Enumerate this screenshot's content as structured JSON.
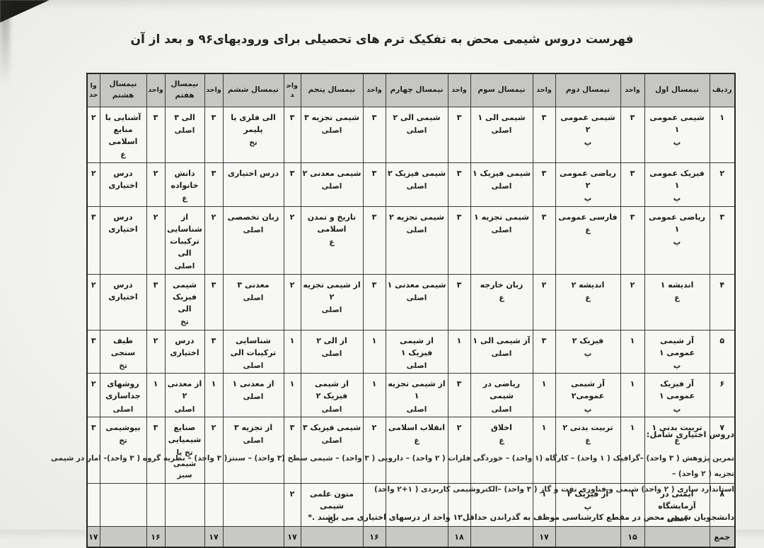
{
  "page": {
    "title": "فهرست دروس شیمی محض  به تفکیک ترم های تحصیلی برای ورودیهای۹۶ و بعد از آن"
  },
  "table": {
    "col_headers": {
      "radif": "ردیف",
      "unit": "واحد",
      "semesters": [
        "نیمسال اول",
        "نیمسال دوم",
        "نیمسال سوم",
        "نیمسال چهارم",
        "نیمسال پنجم",
        "نیمسال ششم",
        "نیمسال هفتم",
        "نیمسال هشتم"
      ]
    },
    "rows": [
      {
        "no": "۱",
        "cells": [
          {
            "c": "شیمی عمومی ۱",
            "t": "پ",
            "u": "۳"
          },
          {
            "c": "شیمی عمومی ۲",
            "t": "پ",
            "u": "۳"
          },
          {
            "c": "شیمی الی ۱",
            "t": "اصلی",
            "u": "۳"
          },
          {
            "c": "شیمی الی ۲",
            "t": "اصلی",
            "u": "۳"
          },
          {
            "c": "شیمی تجزیه ۳",
            "t": "اصلی",
            "u": "۳"
          },
          {
            "c": "الی فلزی یا\nپلیمر",
            "t": "تخ",
            "u": "۳"
          },
          {
            "c": "الی ۳",
            "t": "اصلی",
            "u": "۳"
          },
          {
            "c": "آشنایی با منابع\nاسلامی",
            "t": "ع",
            "u": "۲"
          }
        ]
      },
      {
        "no": "۲",
        "cells": [
          {
            "c": "فیزیک عمومی ۱",
            "t": "پ",
            "u": "۳"
          },
          {
            "c": "ریاضی عمومی ۲",
            "t": "پ",
            "u": "۳"
          },
          {
            "c": "شیمی فیزیک ۱",
            "t": "اصلی",
            "u": "۳"
          },
          {
            "c": "شیمی فیزیک ۲",
            "t": "اصلی",
            "u": "۳"
          },
          {
            "c": "شیمی معدنی ۲",
            "t": "اصلی",
            "u": "۳"
          },
          {
            "c": "درس اختیاری",
            "t": "",
            "u": "۳"
          },
          {
            "c": "دانش\nخانواده",
            "t": "ع",
            "u": "۲"
          },
          {
            "c": "درس اختیاری",
            "t": "",
            "u": "۲"
          }
        ]
      },
      {
        "no": "۳",
        "cells": [
          {
            "c": "ریاضی عمومی ۱",
            "t": "پ",
            "u": "۳"
          },
          {
            "c": "فارسی عمومی",
            "t": "ع",
            "u": "۳"
          },
          {
            "c": "شیمی تجزیه ۱",
            "t": "اصلی",
            "u": "۳"
          },
          {
            "c": "شیمی تجزیه ۲",
            "t": "اصلی",
            "u": "۳"
          },
          {
            "c": "تاریخ و تمدن\nاسلامی",
            "t": "ع",
            "u": "۲"
          },
          {
            "c": "زبان تخصصی",
            "t": "اصلی",
            "u": "۲"
          },
          {
            "c": "از شناسایی\nترکیبات الی",
            "t": "اصلی",
            "u": "۲"
          },
          {
            "c": "درس اختیاری",
            "t": "",
            "u": "۳"
          }
        ]
      },
      {
        "no": "۴",
        "cells": [
          {
            "c": "اندیشه ۱",
            "t": "ع",
            "u": "۲"
          },
          {
            "c": "اندیشه ۲",
            "t": "ع",
            "u": "۲"
          },
          {
            "c": "زبان خارجه",
            "t": "ع",
            "u": "۳"
          },
          {
            "c": "شیمی معدنی ۱",
            "t": "اصلی",
            "u": "۳"
          },
          {
            "c": "از شیمی تجزیه ۲",
            "t": "اصلی",
            "u": "۲"
          },
          {
            "c": "معدنی ۳",
            "t": "اصلی",
            "u": "۳"
          },
          {
            "c": "شیمی\nفیزیک الی",
            "t": "تخ",
            "u": "۳"
          },
          {
            "c": "درس اختیاری",
            "t": "",
            "u": "۲"
          }
        ]
      },
      {
        "no": "۵",
        "cells": [
          {
            "c": "آز شیمی عمومی ۱",
            "t": "پ",
            "u": "۱"
          },
          {
            "c": "فیزیک ۲",
            "t": "پ",
            "u": "۳"
          },
          {
            "c": "آز شیمی الی ۱",
            "t": "اصلی",
            "u": "۱"
          },
          {
            "c": "از شیمی فیزیک ۱",
            "t": "اصلی",
            "u": "۱"
          },
          {
            "c": "از الی ۲",
            "t": "اصلی",
            "u": "۱"
          },
          {
            "c": "شناسایی\nترکیبات الی",
            "t": "اصلی",
            "u": "۳"
          },
          {
            "c": "درس\nاختیاری",
            "t": "",
            "u": "۲"
          },
          {
            "c": "طیف سنجی",
            "t": "تخ",
            "u": "۳"
          }
        ]
      },
      {
        "no": "۶",
        "cells": [
          {
            "c": "آز فیزیک عمومی ۱",
            "t": "پ",
            "u": "۱"
          },
          {
            "c": "آز شیمی عمومی۲",
            "t": "پ",
            "u": "۱"
          },
          {
            "c": "ریاضی در\nشیمی",
            "t": "اصلی",
            "u": "۳"
          },
          {
            "c": "از شیمی تجزیه ۱",
            "t": "اصلی",
            "u": "۱"
          },
          {
            "c": "از شیمی فیزیک ۲",
            "t": "اصلی",
            "u": "۱"
          },
          {
            "c": "از معدنی ۱",
            "t": "اصلی",
            "u": "۱"
          },
          {
            "c": "از معدنی ۲",
            "t": "اصلی",
            "u": "۱"
          },
          {
            "c": "روشهای\nجداسازی",
            "t": "اصلی",
            "u": "۲"
          }
        ]
      },
      {
        "no": "۷",
        "cells": [
          {
            "c": "تربیت بدنی ۱",
            "t": "ع",
            "u": "۱"
          },
          {
            "c": "تربیت بدنی ۲",
            "t": "ع",
            "u": "۱"
          },
          {
            "c": "اخلاق",
            "t": "ع",
            "u": "۲"
          },
          {
            "c": "انقلاب اسلامی",
            "t": "ع",
            "u": "۲"
          },
          {
            "c": "شیمی فیزیک ۳",
            "t": "اصلی",
            "u": "۳"
          },
          {
            "c": "از تجزیه ۳",
            "t": "اصلی",
            "u": "۲"
          },
          {
            "c": "صنایع\nشیمیایی",
            "t": "تخ یا\nشیمی سبز",
            "u": "۳"
          },
          {
            "c": "بیوشیمی",
            "t": "تخ",
            "u": "۳"
          }
        ]
      },
      {
        "no": "۸",
        "cells": [
          {
            "c": "ایمنی در\nآزمایشگاه",
            "t": "اصلی",
            "u": "۱"
          },
          {
            "c": "آز فیزیک ۲",
            "t": "پ",
            "u": "۱"
          },
          {
            "c": "",
            "t": "",
            "u": ""
          },
          {
            "c": "",
            "t": "",
            "u": ""
          },
          {
            "c": "متون علمی شیمی",
            "t": "تخ",
            "u": "۲"
          },
          {
            "c": "",
            "t": "",
            "u": ""
          },
          {
            "c": "",
            "t": "",
            "u": ""
          },
          {
            "c": "",
            "t": "",
            "u": ""
          }
        ]
      }
    ],
    "totals": {
      "label": "جمع",
      "units": [
        "۱۵",
        "۱۷",
        "۱۸",
        "۱۶",
        "۱۷",
        "۱۷",
        "۱۶",
        "۱۷"
      ]
    }
  },
  "notes": {
    "electives_heading": "دروس اختیاری شامل:",
    "electives_line1": "تمرین پژوهش ( ۳ واحد) –گرافیک ( ۱ واحد) – کارگاه (۱ واحد) – خوردگی فلزات ( ۲ واحد) – دارویی ( ۳ واحد) – شیمی سطح (۳ واحد) – سنتز( ۳ واحد) – نظریه گروه ( ۳ واحد)- امار در شیمی تجزیه ( ۲ واحد) –",
    "electives_line2": "استاندارد سازی ( ۲ واحد) شیمی و فناوری نفت و گاز ( ۳ واحد) –الکتروشیمی کاربردی ( ۱+۲ واحد)",
    "requirement": "دانشجویان شیمی محض در مقطع کارشناسی موظف به گذراندن حداقل۱۲ واحد از درسهای اختیاری می باشند .*"
  }
}
